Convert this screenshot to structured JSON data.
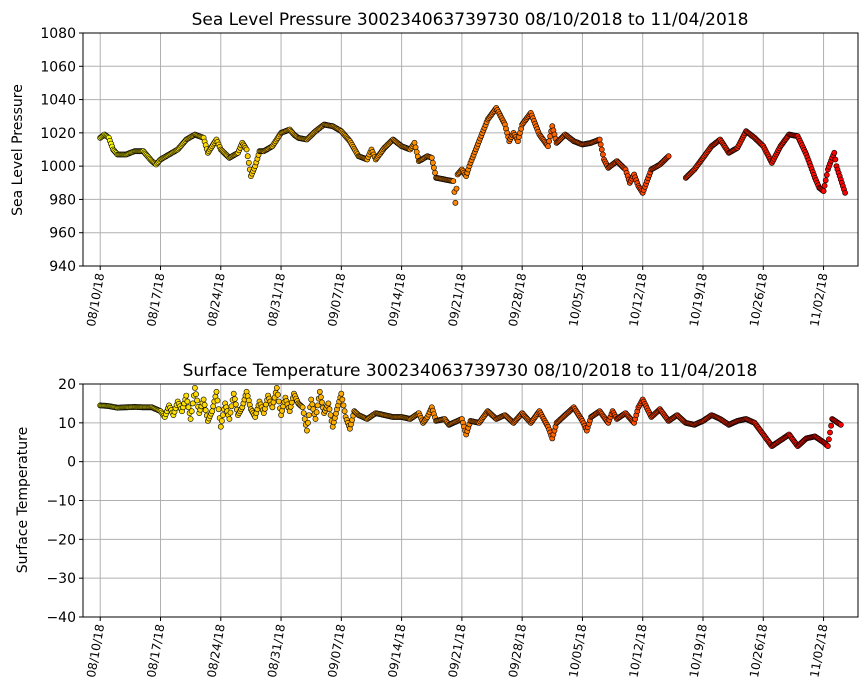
{
  "chart_data": [
    {
      "type": "scatter",
      "title": "Sea Level Pressure 300234063739730  08/10/2018 to 11/04/2018",
      "xlabel": "",
      "ylabel": "Sea Level Pressure",
      "ylim": [
        940,
        1080
      ],
      "yticks": [
        940,
        960,
        980,
        1000,
        1020,
        1040,
        1060,
        1080
      ],
      "xlim": [
        "2018-08-08",
        "2018-11-06"
      ],
      "xticks": [
        "08/10/18",
        "08/17/18",
        "08/24/18",
        "08/31/18",
        "09/07/18",
        "09/14/18",
        "09/21/18",
        "09/28/18",
        "10/05/18",
        "10/12/18",
        "10/19/18",
        "10/26/18",
        "11/02/18"
      ],
      "grid": true,
      "colormap": "autumn_r (yellow to red over time)",
      "segments": [
        {
          "start": "2018-08-10",
          "end": "2018-11-04",
          "points": [
            [
              "2018-08-10",
              1017
            ],
            [
              "2018-08-10T12",
              1019
            ],
            [
              "2018-08-11",
              1017
            ],
            [
              "2018-08-11T12",
              1010
            ],
            [
              "2018-08-12",
              1007
            ],
            [
              "2018-08-13",
              1007
            ],
            [
              "2018-08-14",
              1009
            ],
            [
              "2018-08-15",
              1009
            ],
            [
              "2018-08-16",
              1003
            ],
            [
              "2018-08-16T12",
              1001
            ],
            [
              "2018-08-17",
              1004
            ],
            [
              "2018-08-18",
              1007
            ],
            [
              "2018-08-19",
              1010
            ],
            [
              "2018-08-20",
              1016
            ],
            [
              "2018-08-21",
              1019
            ],
            [
              "2018-08-22",
              1017
            ],
            [
              "2018-08-22T12",
              1008
            ],
            [
              "2018-08-23",
              1012
            ],
            [
              "2018-08-23T12",
              1016
            ],
            [
              "2018-08-24",
              1010
            ],
            [
              "2018-08-25",
              1005
            ],
            [
              "2018-08-26",
              1008
            ],
            [
              "2018-08-26T12",
              1014
            ],
            [
              "2018-08-27",
              1010
            ],
            [
              "2018-08-27T12",
              994
            ],
            [
              "2018-08-28",
              1000
            ],
            [
              "2018-08-28T12",
              1009
            ],
            [
              "2018-08-29",
              1009
            ],
            [
              "2018-08-30",
              1012
            ],
            [
              "2018-08-31",
              1020
            ],
            [
              "2018-09-01",
              1022
            ],
            [
              "2018-09-01T12",
              1019
            ],
            [
              "2018-09-02",
              1017
            ],
            [
              "2018-09-03",
              1016
            ],
            [
              "2018-09-04",
              1021
            ],
            [
              "2018-09-05",
              1025
            ],
            [
              "2018-09-06",
              1024
            ],
            [
              "2018-09-07",
              1021
            ],
            [
              "2018-09-08",
              1015
            ],
            [
              "2018-09-09",
              1006
            ],
            [
              "2018-09-10",
              1004
            ],
            [
              "2018-09-10T12",
              1010
            ],
            [
              "2018-09-11",
              1004
            ],
            [
              "2018-09-12",
              1011
            ],
            [
              "2018-09-13",
              1016
            ],
            [
              "2018-09-14",
              1012
            ],
            [
              "2018-09-15",
              1010
            ],
            [
              "2018-09-15T12",
              1014
            ],
            [
              "2018-09-16",
              1003
            ],
            [
              "2018-09-17",
              1006
            ],
            [
              "2018-09-17T12",
              1005
            ],
            [
              "2018-09-18",
              993
            ],
            [
              "2018-09-19",
              992
            ],
            [
              "2018-09-20",
              991
            ],
            [
              "2018-09-20T06",
              978
            ],
            [
              "2018-09-20T12",
              995
            ],
            [
              "2018-09-21",
              998
            ],
            [
              "2018-09-21T12",
              994
            ],
            [
              "2018-09-22",
              1002
            ],
            [
              "2018-09-23",
              1015
            ],
            [
              "2018-09-24",
              1028
            ],
            [
              "2018-09-25",
              1035
            ],
            [
              "2018-09-26",
              1025
            ],
            [
              "2018-09-26T12",
              1015
            ],
            [
              "2018-09-27",
              1020
            ],
            [
              "2018-09-27T12",
              1015
            ],
            [
              "2018-09-28",
              1025
            ],
            [
              "2018-09-29",
              1032
            ],
            [
              "2018-09-30",
              1019
            ],
            [
              "2018-10-01",
              1012
            ],
            [
              "2018-10-01T12",
              1024
            ],
            [
              "2018-10-02",
              1014
            ],
            [
              "2018-10-03",
              1019
            ],
            [
              "2018-10-04",
              1015
            ],
            [
              "2018-10-05",
              1013
            ],
            [
              "2018-10-06",
              1014
            ],
            [
              "2018-10-07",
              1016
            ],
            [
              "2018-10-07T12",
              1004
            ],
            [
              "2018-10-08",
              999
            ],
            [
              "2018-10-09",
              1003
            ],
            [
              "2018-10-10",
              998
            ],
            [
              "2018-10-10T12",
              990
            ],
            [
              "2018-10-11",
              995
            ],
            [
              "2018-10-11T12",
              988
            ],
            [
              "2018-10-12",
              984
            ],
            [
              "2018-10-13",
              998
            ],
            [
              "2018-10-14",
              1001
            ],
            [
              "2018-10-15",
              1006
            ],
            [
              "2018-10-17",
              993
            ],
            [
              "2018-10-18",
              998
            ],
            [
              "2018-10-19",
              1005
            ],
            [
              "2018-10-20",
              1012
            ],
            [
              "2018-10-21",
              1016
            ],
            [
              "2018-10-22",
              1008
            ],
            [
              "2018-10-23",
              1011
            ],
            [
              "2018-10-24",
              1021
            ],
            [
              "2018-10-25",
              1017
            ],
            [
              "2018-10-26",
              1012
            ],
            [
              "2018-10-27",
              1002
            ],
            [
              "2018-10-28",
              1012
            ],
            [
              "2018-10-29",
              1019
            ],
            [
              "2018-10-30",
              1018
            ],
            [
              "2018-10-31",
              1007
            ],
            [
              "2018-11-01",
              993
            ],
            [
              "2018-11-01T12",
              987
            ],
            [
              "2018-11-02",
              985
            ],
            [
              "2018-11-02T12",
              998
            ],
            [
              "2018-11-03",
              1005
            ],
            [
              "2018-11-03T06",
              1008
            ],
            [
              "2018-11-03T12",
              1000
            ],
            [
              "2018-11-04",
              992
            ],
            [
              "2018-11-04T12",
              984
            ]
          ]
        }
      ]
    },
    {
      "type": "scatter",
      "title": "Surface Temperature 300234063739730  08/10/2018 to 11/04/2018",
      "xlabel": "",
      "ylabel": "Surface Temperature",
      "ylim": [
        -40,
        20
      ],
      "yticks": [
        -40,
        -30,
        -20,
        -10,
        0,
        10,
        20
      ],
      "ytick_labels": [
        "−40",
        "−30",
        "−20",
        "−10",
        "0",
        "10",
        "20"
      ],
      "xlim": [
        "2018-08-08",
        "2018-11-06"
      ],
      "xticks": [
        "08/10/18",
        "08/17/18",
        "08/24/18",
        "08/31/18",
        "09/07/18",
        "09/14/18",
        "09/21/18",
        "09/28/18",
        "10/05/18",
        "10/12/18",
        "10/19/18",
        "10/26/18",
        "11/02/18"
      ],
      "grid": true,
      "colormap": "autumn_r (yellow to red over time)",
      "points": [
        [
          "2018-08-10",
          14.5
        ],
        [
          "2018-08-11",
          14.3
        ],
        [
          "2018-08-12",
          13.9
        ],
        [
          "2018-08-13",
          14.0
        ],
        [
          "2018-08-14",
          14.1
        ],
        [
          "2018-08-15",
          14.0
        ],
        [
          "2018-08-16",
          14.0
        ],
        [
          "2018-08-17",
          13.0
        ],
        [
          "2018-08-17T12",
          11.5
        ],
        [
          "2018-08-18",
          14.5
        ],
        [
          "2018-08-18T12",
          12.0
        ],
        [
          "2018-08-19",
          15.5
        ],
        [
          "2018-08-19T12",
          13.0
        ],
        [
          "2018-08-20",
          17.0
        ],
        [
          "2018-08-20T12",
          11.0
        ],
        [
          "2018-08-21",
          19.0
        ],
        [
          "2018-08-21T12",
          12.5
        ],
        [
          "2018-08-22",
          16.0
        ],
        [
          "2018-08-22T12",
          10.5
        ],
        [
          "2018-08-23",
          13.0
        ],
        [
          "2018-08-23T12",
          18.0
        ],
        [
          "2018-08-24",
          9.0
        ],
        [
          "2018-08-24T12",
          15.0
        ],
        [
          "2018-08-25",
          11.0
        ],
        [
          "2018-08-25T12",
          17.5
        ],
        [
          "2018-08-26",
          12.0
        ],
        [
          "2018-08-26T12",
          14.0
        ],
        [
          "2018-08-27",
          18.0
        ],
        [
          "2018-08-27T12",
          13.5
        ],
        [
          "2018-08-28",
          11.5
        ],
        [
          "2018-08-28T12",
          15.5
        ],
        [
          "2018-08-29",
          12.5
        ],
        [
          "2018-08-29T12",
          17.0
        ],
        [
          "2018-08-30",
          14.0
        ],
        [
          "2018-08-30T12",
          19.0
        ],
        [
          "2018-08-31",
          12.0
        ],
        [
          "2018-08-31T12",
          16.5
        ],
        [
          "2018-09-01",
          13.0
        ],
        [
          "2018-09-01T12",
          17.5
        ],
        [
          "2018-09-02",
          15.0
        ],
        [
          "2018-09-02T12",
          14.0
        ],
        [
          "2018-09-03",
          8.0
        ],
        [
          "2018-09-03T12",
          16.0
        ],
        [
          "2018-09-04",
          11.0
        ],
        [
          "2018-09-04T12",
          18.0
        ],
        [
          "2018-09-05",
          12.5
        ],
        [
          "2018-09-05T12",
          15.0
        ],
        [
          "2018-09-06",
          9.0
        ],
        [
          "2018-09-06T12",
          13.5
        ],
        [
          "2018-09-07",
          17.5
        ],
        [
          "2018-09-07T12",
          11.5
        ],
        [
          "2018-09-08",
          8.5
        ],
        [
          "2018-09-08T12",
          13.0
        ],
        [
          "2018-09-09",
          12.0
        ],
        [
          "2018-09-10",
          11.0
        ],
        [
          "2018-09-11",
          12.5
        ],
        [
          "2018-09-12",
          12.0
        ],
        [
          "2018-09-13",
          11.5
        ],
        [
          "2018-09-14",
          11.5
        ],
        [
          "2018-09-15",
          11.0
        ],
        [
          "2018-09-16",
          12.5
        ],
        [
          "2018-09-16T12",
          10.0
        ],
        [
          "2018-09-17",
          11.5
        ],
        [
          "2018-09-17T12",
          14.0
        ],
        [
          "2018-09-18",
          10.5
        ],
        [
          "2018-09-19",
          11.0
        ],
        [
          "2018-09-19T12",
          9.5
        ],
        [
          "2018-09-20",
          10.0
        ],
        [
          "2018-09-21",
          11.0
        ],
        [
          "2018-09-21T12",
          7.0
        ],
        [
          "2018-09-22",
          10.5
        ],
        [
          "2018-09-23",
          10.0
        ],
        [
          "2018-09-24",
          13.0
        ],
        [
          "2018-09-25",
          11.0
        ],
        [
          "2018-09-26",
          12.0
        ],
        [
          "2018-09-27",
          10.0
        ],
        [
          "2018-09-28",
          12.5
        ],
        [
          "2018-09-29",
          10.0
        ],
        [
          "2018-09-30",
          13.0
        ],
        [
          "2018-10-01",
          9.0
        ],
        [
          "2018-10-01T12",
          6.0
        ],
        [
          "2018-10-02",
          10.0
        ],
        [
          "2018-10-03",
          12.0
        ],
        [
          "2018-10-04",
          14.0
        ],
        [
          "2018-10-05",
          10.5
        ],
        [
          "2018-10-05T12",
          8.0
        ],
        [
          "2018-10-06",
          11.5
        ],
        [
          "2018-10-07",
          13.0
        ],
        [
          "2018-10-08",
          10.0
        ],
        [
          "2018-10-08T12",
          13.0
        ],
        [
          "2018-10-09",
          11.0
        ],
        [
          "2018-10-10",
          12.5
        ],
        [
          "2018-10-11",
          10.0
        ],
        [
          "2018-10-11T12",
          14.0
        ],
        [
          "2018-10-12",
          16.0
        ],
        [
          "2018-10-13",
          11.5
        ],
        [
          "2018-10-14",
          13.5
        ],
        [
          "2018-10-15",
          10.5
        ],
        [
          "2018-10-16",
          12.0
        ],
        [
          "2018-10-17",
          10.0
        ],
        [
          "2018-10-18",
          9.5
        ],
        [
          "2018-10-19",
          10.5
        ],
        [
          "2018-10-20",
          12.0
        ],
        [
          "2018-10-21",
          11.0
        ],
        [
          "2018-10-22",
          9.5
        ],
        [
          "2018-10-23",
          10.5
        ],
        [
          "2018-10-24",
          11.0
        ],
        [
          "2018-10-25",
          10.0
        ],
        [
          "2018-10-26",
          7.0
        ],
        [
          "2018-10-27",
          4.0
        ],
        [
          "2018-10-28",
          5.5
        ],
        [
          "2018-10-29",
          7.0
        ],
        [
          "2018-10-30",
          4.0
        ],
        [
          "2018-10-31",
          6.0
        ],
        [
          "2018-11-01",
          6.5
        ],
        [
          "2018-11-02",
          5.0
        ],
        [
          "2018-11-02T12",
          4.0
        ],
        [
          "2018-11-03",
          11.0
        ],
        [
          "2018-11-04",
          9.5
        ]
      ]
    }
  ]
}
